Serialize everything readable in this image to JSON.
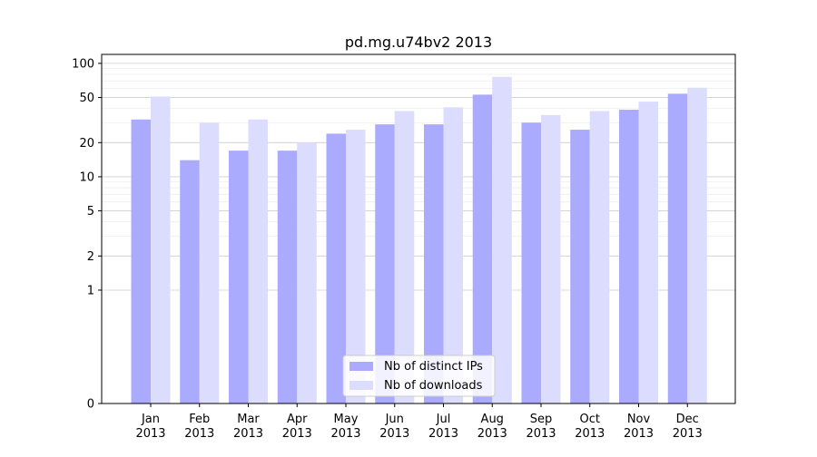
{
  "chart_data": {
    "type": "bar",
    "title": "pd.mg.u74bv2 2013",
    "xlabel": "",
    "ylabel": "",
    "yscale": "symlog",
    "ylim": [
      0,
      120
    ],
    "yticks": [
      0,
      1,
      2,
      5,
      10,
      20,
      50,
      100
    ],
    "ytick_labels": [
      "0",
      "1",
      "2",
      "5",
      "10",
      "20",
      "50",
      "100"
    ],
    "categories": [
      "Jan\n2013",
      "Feb\n2013",
      "Mar\n2013",
      "Apr\n2013",
      "May\n2013",
      "Jun\n2013",
      "Jul\n2013",
      "Aug\n2013",
      "Sep\n2013",
      "Oct\n2013",
      "Nov\n2013",
      "Dec\n2013"
    ],
    "series": [
      {
        "name": "Nb of distinct IPs",
        "color": "#aaaaff",
        "values": [
          32,
          14,
          17,
          17,
          24,
          29,
          29,
          53,
          30,
          26,
          39,
          54
        ]
      },
      {
        "name": "Nb of downloads",
        "color": "#dcdcff",
        "values": [
          51,
          30,
          32,
          20,
          26,
          38,
          41,
          76,
          35,
          38,
          46,
          61
        ]
      }
    ],
    "grid": true,
    "legend": "bottom-center"
  }
}
